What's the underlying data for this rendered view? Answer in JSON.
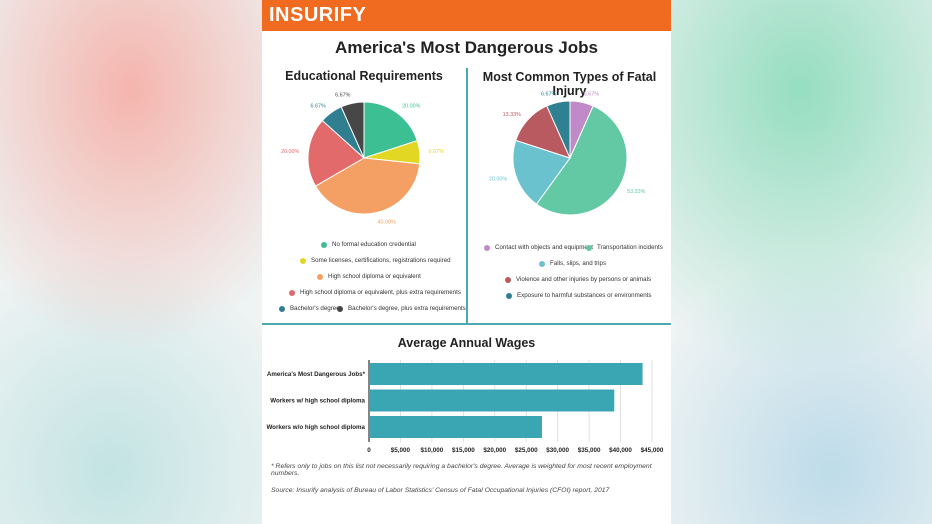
{
  "brand": {
    "logo": "INSURIFY"
  },
  "title": "America's Most Dangerous Jobs",
  "chart_data": [
    {
      "type": "pie",
      "title": "Educational Requirements",
      "slices": [
        {
          "label": "No formal education credential",
          "value": 20.0,
          "value_label": "20.00%",
          "color": "#3dbf94"
        },
        {
          "label": "Some licenses, certifications, registrations required",
          "value": 6.67,
          "value_label": "6.67%",
          "color": "#e2d824"
        },
        {
          "label": "High school diploma or equivalent",
          "value": 40.0,
          "value_label": "40.00%",
          "color": "#f4a064"
        },
        {
          "label": "High school diploma or equivalent, plus extra requirements",
          "value": 20.0,
          "value_label": "20.00%",
          "color": "#e26a6a"
        },
        {
          "label": "Bachelor's degree",
          "value": 6.67,
          "value_label": "6.67%",
          "color": "#2f7f91"
        },
        {
          "label": "Bachelor's degree, plus extra requirements",
          "value": 6.67,
          "value_label": "6.67%",
          "color": "#474747"
        }
      ]
    },
    {
      "type": "pie",
      "title": "Most Common Types of Fatal Injury",
      "slices": [
        {
          "label": "Contact with objects and equipment",
          "value": 6.67,
          "value_label": "6.67%",
          "color": "#c08ac8"
        },
        {
          "label": "Transportation incidents",
          "value": 53.33,
          "value_label": "53.33%",
          "color": "#63c9a5"
        },
        {
          "label": "Falls, slips, and trips",
          "value": 20.0,
          "value_label": "20.00%",
          "color": "#6ac2cf"
        },
        {
          "label": "Violence and other injuries by persons or animals",
          "value": 13.33,
          "value_label": "13.33%",
          "color": "#b85a5f"
        },
        {
          "label": "Exposure to harmful substances or environments",
          "value": 6.67,
          "value_label": "6.67%",
          "color": "#2f8090"
        }
      ]
    },
    {
      "type": "bar",
      "orientation": "horizontal",
      "title": "Average Annual Wages",
      "categories": [
        "America's Most Dangerous Jobs*",
        "Workers w/ high school diploma",
        "Workers w/o high school diploma"
      ],
      "values": [
        43500,
        39000,
        27500
      ],
      "xlim": [
        0,
        45000
      ],
      "ticks": [
        0,
        5000,
        10000,
        15000,
        20000,
        25000,
        30000,
        35000,
        40000,
        45000
      ],
      "tick_labels": [
        "0",
        "$5,000",
        "$10,000",
        "$15,000",
        "$20,000",
        "$25,000",
        "$30,000",
        "$35,000",
        "$40,000",
        "$45,000"
      ],
      "color": "#3aa6b4",
      "grid": true
    }
  ],
  "footnote": "* Refers only to jobs on this list not necessarily requiring a bachelor's degree. Average is weighted for most recent employment numbers.",
  "source": "Source: Insurify analysis of Bureau of Labor Statistics' Census of Fatal Occupational Injuries (CFOI) report, 2017"
}
